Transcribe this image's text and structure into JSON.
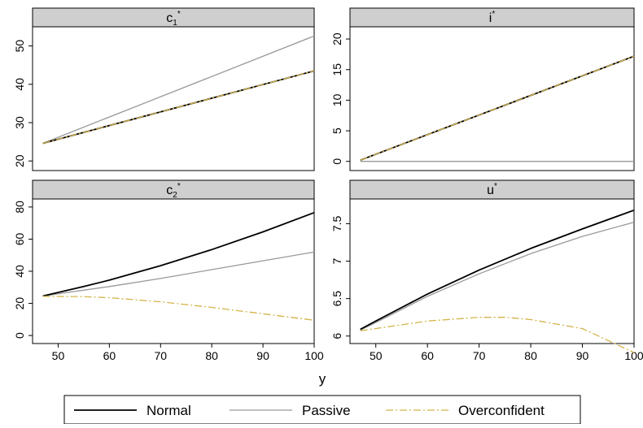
{
  "figure": {
    "xlabel": "y",
    "legend": {
      "placement": "bottom",
      "entries": [
        {
          "name": "Normal",
          "color": "#000000",
          "dash": "solid"
        },
        {
          "name": "Passive",
          "color": "#999999",
          "dash": "solid"
        },
        {
          "name": "Overconfident",
          "color": "#D4B44A",
          "dash": "dashdot"
        }
      ]
    }
  },
  "chart_data": [
    {
      "type": "line",
      "title": "c1*",
      "title_main": "c",
      "title_sub": "1",
      "title_sup": "*",
      "xlim": [
        45,
        100
      ],
      "ylim": [
        17.5,
        55
      ],
      "xticks": [
        50,
        60,
        70,
        80,
        90,
        100
      ],
      "yticks": [
        20,
        30,
        40,
        50
      ],
      "show_xticks": false,
      "series": [
        {
          "name": "Passive",
          "x": [
            47,
            100
          ],
          "y": [
            24.6,
            52.6
          ]
        },
        {
          "name": "Normal",
          "x": [
            47,
            100
          ],
          "y": [
            24.6,
            43.5
          ]
        },
        {
          "name": "Overconfident",
          "x": [
            47,
            100
          ],
          "y": [
            24.6,
            43.5
          ]
        }
      ]
    },
    {
      "type": "line",
      "title": "i*",
      "title_main": "i",
      "title_sub": "",
      "title_sup": "*",
      "xlim": [
        45,
        100
      ],
      "ylim": [
        -1.5,
        22
      ],
      "xticks": [
        50,
        60,
        70,
        80,
        90,
        100
      ],
      "yticks": [
        0,
        5,
        10,
        15,
        20
      ],
      "show_xticks": false,
      "series": [
        {
          "name": "Passive",
          "x": [
            47,
            100
          ],
          "y": [
            0,
            0
          ]
        },
        {
          "name": "Normal",
          "x": [
            47,
            100
          ],
          "y": [
            0.2,
            17.2
          ]
        },
        {
          "name": "Overconfident",
          "x": [
            47,
            100
          ],
          "y": [
            0.2,
            17.2
          ]
        }
      ]
    },
    {
      "type": "line",
      "title": "c2*",
      "title_main": "c",
      "title_sub": "2",
      "title_sup": "*",
      "xlim": [
        45,
        100
      ],
      "ylim": [
        -5,
        85
      ],
      "xticks": [
        50,
        60,
        70,
        80,
        90,
        100
      ],
      "yticks": [
        0,
        20,
        40,
        60,
        80
      ],
      "show_xticks": true,
      "series": [
        {
          "name": "Normal",
          "x": [
            47,
            55,
            60,
            70,
            80,
            90,
            100
          ],
          "y": [
            24.6,
            30.5,
            34.5,
            43.5,
            53.5,
            64.5,
            76.5
          ]
        },
        {
          "name": "Passive",
          "x": [
            47,
            60,
            70,
            80,
            90,
            100
          ],
          "y": [
            24.6,
            30.5,
            35.5,
            41,
            46.5,
            52
          ]
        },
        {
          "name": "Overconfident",
          "x": [
            47,
            55,
            60,
            70,
            80,
            90,
            100
          ],
          "y": [
            24.4,
            24.2,
            23.5,
            21,
            17.5,
            13.5,
            9.5
          ]
        }
      ]
    },
    {
      "type": "line",
      "title": "u*",
      "title_main": "u",
      "title_sub": "",
      "title_sup": "*",
      "xlim": [
        45,
        100
      ],
      "ylim": [
        5.9,
        7.83
      ],
      "xticks": [
        50,
        60,
        70,
        80,
        90,
        100
      ],
      "yticks": [
        6,
        6.5,
        7,
        7.5
      ],
      "show_xticks": true,
      "series": [
        {
          "name": "Normal",
          "x": [
            47,
            50,
            60,
            70,
            80,
            90,
            100
          ],
          "y": [
            6.09,
            6.2,
            6.56,
            6.88,
            7.17,
            7.43,
            7.68
          ]
        },
        {
          "name": "Passive",
          "x": [
            47,
            50,
            60,
            70,
            80,
            90,
            100
          ],
          "y": [
            6.08,
            6.18,
            6.53,
            6.83,
            7.1,
            7.33,
            7.52
          ]
        },
        {
          "name": "Overconfident",
          "x": [
            47,
            55,
            60,
            70,
            75,
            80,
            90,
            100
          ],
          "y": [
            6.07,
            6.15,
            6.2,
            6.25,
            6.25,
            6.22,
            6.1,
            5.78
          ]
        }
      ]
    }
  ]
}
